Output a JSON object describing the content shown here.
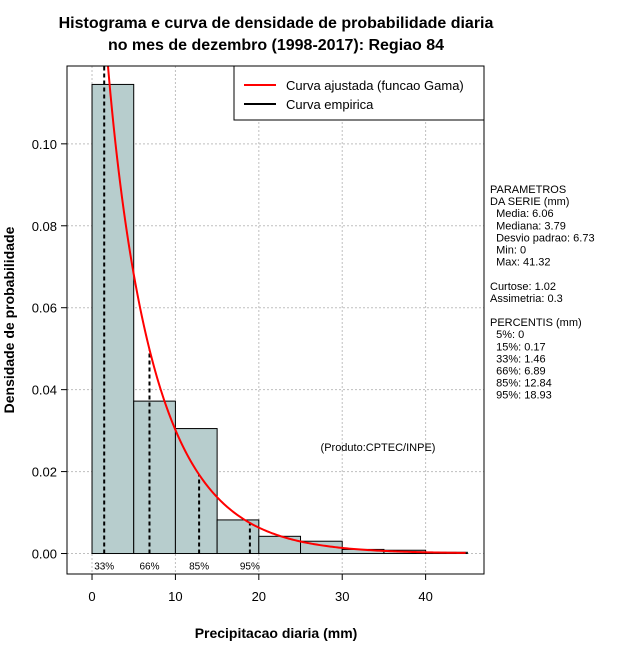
{
  "chart_data": {
    "type": "bar",
    "title_line1": "Histograma e curva de densidade de probabilidade diaria",
    "title_line2": "no mes de dezembro (1998-2017): Regiao 84",
    "xlabel": "Precipitacao diaria (mm)",
    "ylabel": "Densidade de probabilidade",
    "xlim": [
      -3,
      47
    ],
    "ylim": [
      -0.005,
      0.119
    ],
    "x_ticks": [
      0,
      10,
      20,
      30,
      40
    ],
    "x_tick_labels": [
      "0",
      "10",
      "20",
      "30",
      "40"
    ],
    "y_ticks": [
      0.0,
      0.02,
      0.04,
      0.06,
      0.08,
      0.1
    ],
    "y_tick_labels": [
      "0.00",
      "0.02",
      "0.04",
      "0.06",
      "0.08",
      "0.10"
    ],
    "bins": [
      {
        "x0": 0,
        "x1": 5,
        "density": 0.1145
      },
      {
        "x0": 5,
        "x1": 10,
        "density": 0.0372
      },
      {
        "x0": 10,
        "x1": 15,
        "density": 0.0305
      },
      {
        "x0": 15,
        "x1": 20,
        "density": 0.0082
      },
      {
        "x0": 20,
        "x1": 25,
        "density": 0.0042
      },
      {
        "x0": 25,
        "x1": 30,
        "density": 0.003
      },
      {
        "x0": 30,
        "x1": 35,
        "density": 0.001
      },
      {
        "x0": 35,
        "x1": 40,
        "density": 0.0008
      },
      {
        "x0": 40,
        "x1": 45,
        "density": 0.0003
      }
    ],
    "gamma_fit": {
      "shape": 0.9,
      "scale": 6.7
    },
    "series": [
      {
        "name": "Curva ajustada (funcao Gama)",
        "color": "#ff0000"
      },
      {
        "name": "Curva empirica",
        "color": "#000000"
      }
    ],
    "percentile_lines": [
      {
        "label": "33%",
        "x": 1.46
      },
      {
        "label": "66%",
        "x": 6.89
      },
      {
        "label": "85%",
        "x": 12.84
      },
      {
        "label": "95%",
        "x": 18.93
      }
    ],
    "annotation": "(Produto:CPTEC/INPE)",
    "bar_color": "#b7cdcd",
    "grid": true,
    "legend_position": "top-right"
  },
  "side_panel": {
    "lines": [
      "PARAMETROS",
      "DA SERIE (mm)",
      "  Media: 6.06",
      "  Mediana: 3.79",
      "  Desvio padrao: 6.73",
      "  Min: 0",
      "  Max: 41.32",
      "",
      "Curtose: 1.02",
      "Assimetria: 0.3",
      "",
      "PERCENTIS (mm)",
      "  5%: 0",
      "  15%: 0.17",
      "  33%: 1.46",
      "  66%: 6.89",
      "  85%: 12.84",
      "  95%: 18.93"
    ]
  }
}
